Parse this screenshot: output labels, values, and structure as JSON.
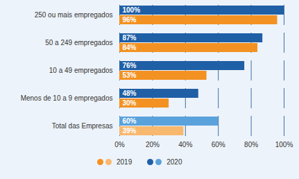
{
  "chart_data": {
    "type": "bar",
    "orientation": "horizontal",
    "categories": [
      "250 ou mais empregados",
      "50 a 249 empregados",
      "10 a 49 empregados",
      "Menos de 10 a 9 empregados",
      "Total das Empresas"
    ],
    "series": [
      {
        "name": "2019",
        "color": "#f39223",
        "colors": [
          "#f39223",
          "#f39223",
          "#f39223",
          "#f39223",
          "#f8b86e"
        ],
        "values": [
          96,
          84,
          53,
          30,
          39
        ],
        "value_labels": [
          "96%",
          "84%",
          "53%",
          "30%",
          "39%"
        ]
      },
      {
        "name": "2020",
        "color": "#1f5fa6",
        "colors": [
          "#1f5fa6",
          "#1f5fa6",
          "#1f5fa6",
          "#1f5fa6",
          "#5aa2dc"
        ],
        "values": [
          100,
          87,
          76,
          48,
          60
        ],
        "value_labels": [
          "100%",
          "87%",
          "76%",
          "48%",
          "60%"
        ]
      }
    ],
    "xlim": [
      0,
      100
    ],
    "xticks": [
      {
        "value": 0,
        "label": "0%"
      },
      {
        "value": 20,
        "label": "20%"
      },
      {
        "value": 40,
        "label": "40%"
      },
      {
        "value": 60,
        "label": "60%"
      },
      {
        "value": 80,
        "label": "80%"
      },
      {
        "value": 100,
        "label": "100%"
      }
    ],
    "grid": true,
    "data_labels": true,
    "legend": "bottom"
  }
}
